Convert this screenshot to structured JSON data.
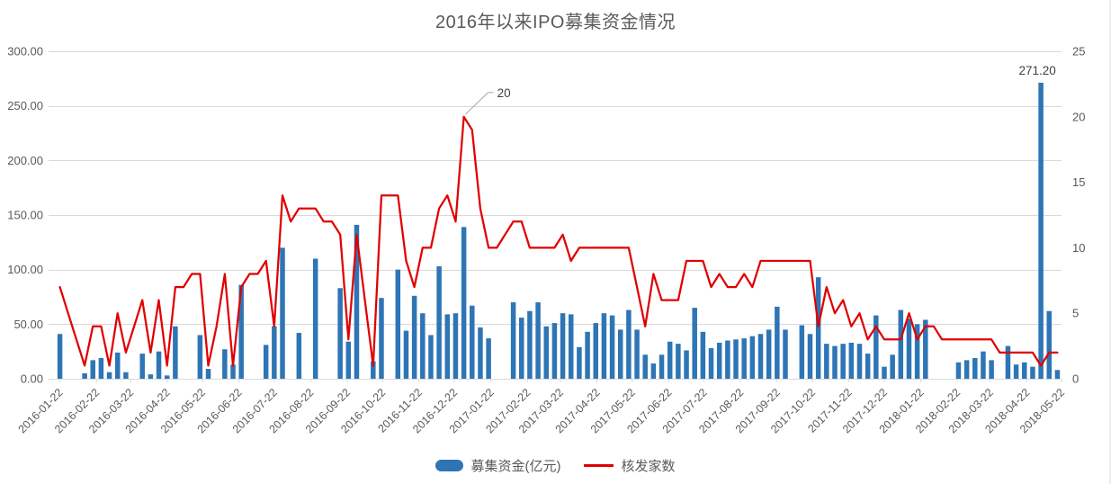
{
  "chart_data": {
    "type": "combo-bar-line",
    "title": "2016年以来IPO募集资金情况",
    "x_labels": [
      "2016-01-22",
      "2016-02-22",
      "2016-03-22",
      "2016-04-22",
      "2016-05-22",
      "2016-06-22",
      "2016-07-22",
      "2016-08-22",
      "2016-09-22",
      "2016-10-22",
      "2016-11-22",
      "2016-12-22",
      "2017-01-22",
      "2017-02-22",
      "2017-03-22",
      "2017-04-22",
      "2017-05-22",
      "2017-06-22",
      "2017-07-22",
      "2017-08-22",
      "2017-09-22",
      "2017-10-22",
      "2017-11-22",
      "2017-12-22",
      "2018-01-22",
      "2018-02-22",
      "2018-03-22",
      "2018-04-22",
      "2018-05-22"
    ],
    "x_cadence": "weekly",
    "series": [
      {
        "name": "募集资金(亿元)",
        "type": "bar",
        "axis": "left",
        "color": "#2E75B6",
        "values": [
          41,
          0,
          0,
          5,
          17,
          19,
          6,
          24,
          6,
          0,
          23,
          4,
          25,
          3,
          48,
          0,
          0,
          40,
          9,
          0,
          27,
          13,
          86,
          0,
          0,
          31,
          48,
          120,
          0,
          42,
          0,
          110,
          0,
          0,
          83,
          34,
          141,
          0,
          16,
          74,
          0,
          100,
          44,
          76,
          60,
          40,
          103,
          59,
          60,
          139,
          67,
          47,
          37,
          0,
          0,
          70,
          56,
          62,
          70,
          48,
          51,
          60,
          59,
          29,
          43,
          51,
          60,
          58,
          45,
          63,
          45,
          22,
          14,
          22,
          34,
          32,
          26,
          65,
          43,
          28,
          33,
          35,
          36,
          37,
          39,
          41,
          45,
          66,
          45,
          0,
          49,
          41,
          93,
          32,
          30,
          32,
          33,
          32,
          23,
          58,
          11,
          22,
          63,
          55,
          50,
          54,
          0,
          0,
          0,
          15,
          17,
          19,
          25,
          17,
          0,
          30,
          13,
          15,
          11,
          271.2,
          62,
          8
        ]
      },
      {
        "name": "核发家数",
        "type": "line",
        "axis": "right",
        "color": "#E00000",
        "values": [
          7,
          5,
          3,
          1,
          4,
          4,
          1,
          5,
          2,
          4,
          6,
          2,
          6,
          1,
          7,
          7,
          8,
          8,
          1,
          4,
          8,
          1,
          7,
          8,
          8,
          9,
          4,
          14,
          12,
          13,
          13,
          13,
          12,
          12,
          11,
          3,
          11,
          6,
          1,
          14,
          14,
          14,
          9,
          7,
          10,
          10,
          13,
          14,
          12,
          20,
          19,
          13,
          10,
          10,
          11,
          12,
          12,
          10,
          10,
          10,
          10,
          11,
          9,
          10,
          10,
          10,
          10,
          10,
          10,
          10,
          7,
          4,
          8,
          6,
          6,
          6,
          9,
          9,
          9,
          7,
          8,
          7,
          7,
          8,
          7,
          9,
          9,
          9,
          9,
          9,
          9,
          9,
          4,
          7,
          5,
          6,
          4,
          5,
          3,
          4,
          3,
          3,
          3,
          5,
          3,
          4,
          4,
          3,
          3,
          3,
          3,
          3,
          3,
          3,
          2,
          2,
          2,
          2,
          2,
          1,
          2,
          2
        ]
      }
    ],
    "left_axis": {
      "min": 0,
      "max": 300,
      "step": 50,
      "tick_labels": [
        "0.00",
        "50.00",
        "100.00",
        "150.00",
        "200.00",
        "250.00",
        "300.00"
      ]
    },
    "right_axis": {
      "min": 0,
      "max": 25,
      "step": 5,
      "tick_labels": [
        "0",
        "5",
        "10",
        "15",
        "20",
        "25"
      ]
    },
    "annotations": [
      {
        "text": "20",
        "series_index": 1,
        "point_index": 49
      },
      {
        "text": "271.20",
        "series_index": 0,
        "point_index": 119
      }
    ],
    "grid": "horizontal",
    "legend_position": "bottom"
  },
  "colors": {
    "bar": "#2E75B6",
    "line": "#E00000",
    "grid": "#D9D9D9",
    "axis_line": "#D9D9D9",
    "axis_text": "#595959",
    "annotation_text": "#404040",
    "annotation_leader": "#A6A6A6",
    "frame": "#D9D9D9"
  }
}
